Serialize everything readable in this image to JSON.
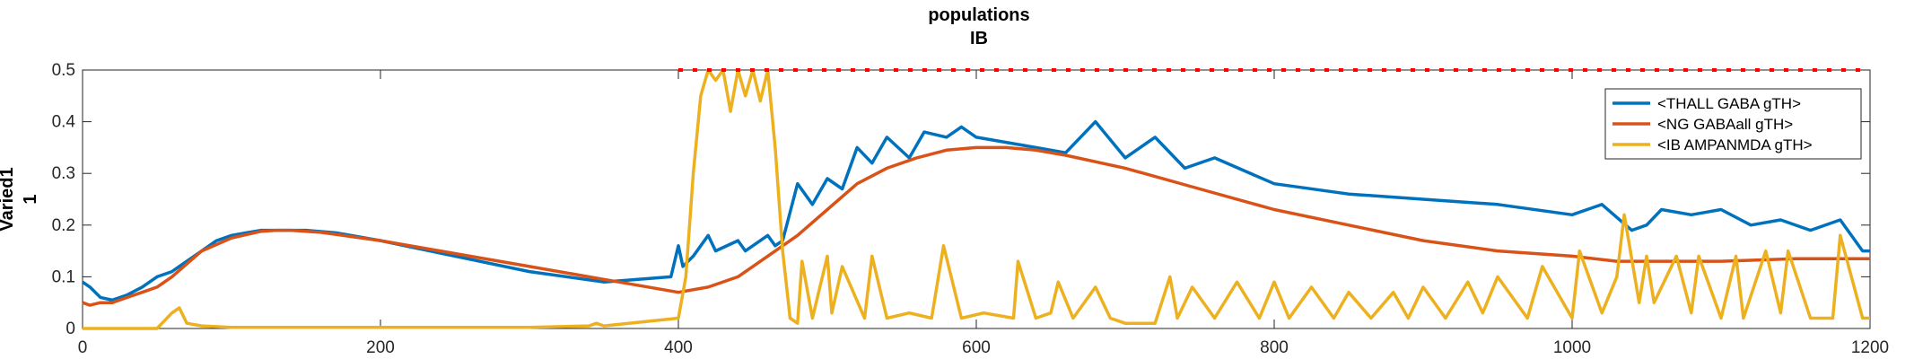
{
  "chart_data": {
    "type": "line",
    "title": "populations",
    "subtitle": "IB",
    "ylabel": "Varied1",
    "ylabel_sub": "1",
    "xlabel": "",
    "xlim": [
      0,
      1200
    ],
    "ylim": [
      0,
      0.5
    ],
    "x_ticks": [
      0,
      200,
      400,
      600,
      800,
      1000,
      1200
    ],
    "y_ticks": [
      0,
      0.1,
      0.2,
      0.3,
      0.4,
      0.5
    ],
    "x_tick_labels": [
      "0",
      "200",
      "400",
      "600",
      "800",
      "1000",
      "1200"
    ],
    "y_tick_labels": [
      "0",
      "0.1",
      "0.2",
      "0.3",
      "0.4",
      "0.5"
    ],
    "grid": false,
    "legend_position": "top-right",
    "series": [
      {
        "name": "<THALL GABA gTH>",
        "color": "#0072BD",
        "x": [
          0,
          5,
          12,
          20,
          30,
          40,
          50,
          60,
          70,
          80,
          90,
          100,
          110,
          120,
          130,
          140,
          150,
          170,
          200,
          250,
          300,
          350,
          395,
          400,
          403,
          410,
          420,
          425,
          440,
          445,
          460,
          465,
          470,
          480,
          490,
          500,
          510,
          520,
          530,
          540,
          555,
          565,
          580,
          590,
          600,
          620,
          640,
          660,
          680,
          700,
          720,
          740,
          760,
          800,
          850,
          900,
          950,
          1000,
          1020,
          1040,
          1050,
          1060,
          1080,
          1100,
          1120,
          1140,
          1160,
          1180,
          1195,
          1200
        ],
        "values": [
          0.09,
          0.08,
          0.06,
          0.055,
          0.065,
          0.08,
          0.1,
          0.11,
          0.13,
          0.15,
          0.17,
          0.18,
          0.185,
          0.19,
          0.19,
          0.19,
          0.19,
          0.185,
          0.17,
          0.14,
          0.11,
          0.09,
          0.1,
          0.16,
          0.12,
          0.14,
          0.18,
          0.15,
          0.17,
          0.15,
          0.18,
          0.16,
          0.17,
          0.28,
          0.24,
          0.29,
          0.27,
          0.35,
          0.32,
          0.37,
          0.33,
          0.38,
          0.37,
          0.39,
          0.37,
          0.36,
          0.35,
          0.34,
          0.4,
          0.33,
          0.37,
          0.31,
          0.33,
          0.28,
          0.26,
          0.25,
          0.24,
          0.22,
          0.24,
          0.19,
          0.2,
          0.23,
          0.22,
          0.23,
          0.2,
          0.21,
          0.19,
          0.21,
          0.15,
          0.15
        ]
      },
      {
        "name": "<NG GABAall gTH>",
        "color": "#D95319",
        "x": [
          0,
          5,
          12,
          20,
          30,
          40,
          50,
          60,
          80,
          100,
          120,
          130,
          140,
          160,
          200,
          250,
          300,
          350,
          400,
          420,
          440,
          460,
          480,
          500,
          520,
          540,
          560,
          580,
          600,
          620,
          640,
          660,
          700,
          750,
          800,
          850,
          900,
          950,
          1000,
          1030,
          1050,
          1100,
          1150,
          1200
        ],
        "values": [
          0.05,
          0.045,
          0.05,
          0.05,
          0.06,
          0.07,
          0.08,
          0.1,
          0.15,
          0.175,
          0.188,
          0.19,
          0.19,
          0.186,
          0.17,
          0.145,
          0.12,
          0.095,
          0.07,
          0.08,
          0.1,
          0.14,
          0.18,
          0.23,
          0.28,
          0.31,
          0.33,
          0.345,
          0.35,
          0.35,
          0.345,
          0.335,
          0.31,
          0.27,
          0.23,
          0.2,
          0.17,
          0.15,
          0.14,
          0.13,
          0.13,
          0.13,
          0.135,
          0.135
        ]
      },
      {
        "name": "<IB AMPANMDA gTH>",
        "color": "#EDB120",
        "x": [
          0,
          50,
          60,
          65,
          70,
          80,
          100,
          200,
          300,
          340,
          345,
          350,
          400,
          405,
          410,
          415,
          420,
          425,
          430,
          435,
          440,
          445,
          450,
          455,
          460,
          465,
          470,
          475,
          480,
          483,
          490,
          500,
          503,
          510,
          525,
          530,
          540,
          555,
          570,
          578,
          590,
          605,
          625,
          628,
          640,
          650,
          655,
          665,
          680,
          690,
          700,
          720,
          730,
          735,
          745,
          760,
          775,
          790,
          800,
          810,
          825,
          840,
          850,
          865,
          880,
          890,
          900,
          915,
          930,
          940,
          950,
          970,
          980,
          1000,
          1005,
          1020,
          1030,
          1035,
          1045,
          1050,
          1055,
          1070,
          1080,
          1085,
          1100,
          1110,
          1115,
          1130,
          1140,
          1145,
          1160,
          1175,
          1180,
          1195,
          1200
        ],
        "values": [
          0.0,
          0.0,
          0.03,
          0.04,
          0.01,
          0.005,
          0.002,
          0.002,
          0.002,
          0.005,
          0.01,
          0.005,
          0.02,
          0.1,
          0.3,
          0.45,
          0.5,
          0.48,
          0.5,
          0.42,
          0.5,
          0.45,
          0.5,
          0.44,
          0.5,
          0.35,
          0.15,
          0.02,
          0.01,
          0.13,
          0.02,
          0.14,
          0.03,
          0.12,
          0.02,
          0.14,
          0.02,
          0.03,
          0.02,
          0.16,
          0.02,
          0.03,
          0.02,
          0.13,
          0.02,
          0.03,
          0.09,
          0.02,
          0.08,
          0.02,
          0.01,
          0.01,
          0.1,
          0.02,
          0.08,
          0.02,
          0.09,
          0.02,
          0.09,
          0.02,
          0.08,
          0.02,
          0.07,
          0.02,
          0.07,
          0.02,
          0.08,
          0.02,
          0.09,
          0.03,
          0.1,
          0.02,
          0.12,
          0.02,
          0.15,
          0.03,
          0.1,
          0.22,
          0.05,
          0.14,
          0.05,
          0.14,
          0.03,
          0.14,
          0.02,
          0.14,
          0.02,
          0.15,
          0.03,
          0.15,
          0.02,
          0.02,
          0.18,
          0.02,
          0.02
        ]
      }
    ],
    "annotations": [
      {
        "type": "dotted-line",
        "color": "#FF0000",
        "y": 0.5,
        "x": [
          400,
          1200
        ]
      }
    ]
  }
}
